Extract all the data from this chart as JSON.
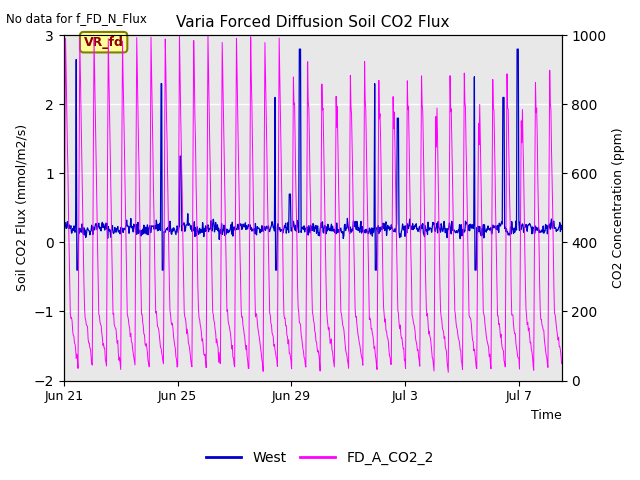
{
  "title": "Varia Forced Diffusion Soil CO2 Flux",
  "top_left_note": "No data for f_FD_N_Flux",
  "xlabel": "Time",
  "ylabel_left": "Soil CO2 Flux (mmol/m2/s)",
  "ylabel_right": "CO2 Concentration (ppm)",
  "ylim_left": [
    -2.0,
    3.0
  ],
  "ylim_right": [
    0,
    1000
  ],
  "legend_blue": "West",
  "legend_magenta": "FD_A_CO2_2",
  "annotation_label": "VR_fd",
  "blue_color": "#0000CC",
  "magenta_color": "#FF00FF",
  "background_color": "#E8E8E8",
  "xtick_labels": [
    "Jun 21",
    "Jun 25",
    "Jun 29",
    "Jul 3",
    "Jul 7"
  ],
  "xtick_positions": [
    0,
    4,
    8,
    12,
    16
  ],
  "total_days": 17.5,
  "grid_color": "white"
}
